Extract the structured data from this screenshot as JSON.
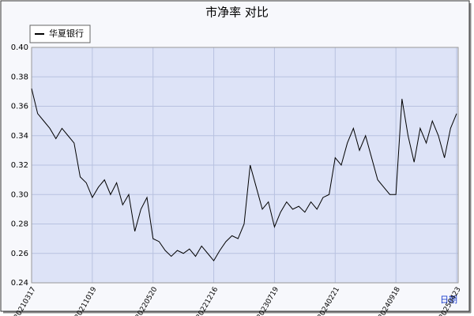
{
  "chart_data": {
    "type": "line",
    "title": "市净率  对比",
    "x_label": "日期",
    "categories": [
      "20210317",
      null,
      null,
      null,
      null,
      null,
      null,
      null,
      null,
      null,
      "20211019",
      null,
      null,
      null,
      null,
      null,
      null,
      null,
      null,
      null,
      "20220520",
      null,
      null,
      null,
      null,
      null,
      null,
      null,
      null,
      null,
      "20221216",
      null,
      null,
      null,
      null,
      null,
      null,
      null,
      null,
      null,
      "20230719",
      null,
      null,
      null,
      null,
      null,
      null,
      null,
      null,
      null,
      "20240221",
      null,
      null,
      null,
      null,
      null,
      null,
      null,
      null,
      null,
      "20240918",
      null,
      null,
      null,
      null,
      null,
      null,
      null,
      null,
      null,
      "20250423"
    ],
    "series": [
      {
        "name": "华夏银行",
        "color": "#000000",
        "values": [
          0.372,
          0.355,
          0.35,
          0.345,
          0.338,
          0.345,
          0.34,
          0.335,
          0.312,
          0.308,
          0.298,
          0.305,
          0.31,
          0.3,
          0.308,
          0.293,
          0.3,
          0.275,
          0.29,
          0.298,
          0.27,
          0.268,
          0.262,
          0.258,
          0.262,
          0.26,
          0.263,
          0.258,
          0.265,
          0.26,
          0.255,
          0.262,
          0.268,
          0.272,
          0.27,
          0.28,
          0.32,
          0.305,
          0.29,
          0.295,
          0.278,
          0.288,
          0.295,
          0.29,
          0.292,
          0.288,
          0.295,
          0.29,
          0.298,
          0.3,
          0.325,
          0.32,
          0.335,
          0.345,
          0.33,
          0.34,
          0.325,
          0.31,
          0.305,
          0.3,
          0.3,
          0.365,
          0.34,
          0.322,
          0.345,
          0.335,
          0.35,
          0.34,
          0.325,
          0.345,
          0.355
        ]
      }
    ],
    "ylim": [
      0.24,
      0.4
    ],
    "yticks": [
      0.24,
      0.26,
      0.28,
      {
        "value": 0.3,
        "label": "0.30"
      },
      0.32,
      0.34,
      0.36,
      0.38,
      {
        "value": 0.4,
        "label": "0.40"
      }
    ],
    "grid": true,
    "legend": "top-left"
  }
}
